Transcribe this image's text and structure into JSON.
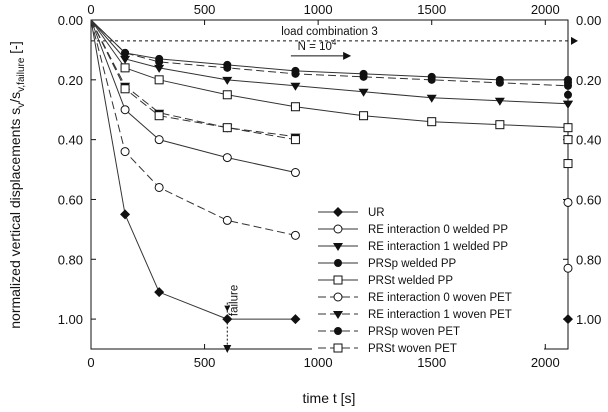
{
  "chart_data": {
    "type": "line",
    "xlabel": "time t [s]",
    "ylabel": "normalized vertical displacements s",
    "ylabel_sub": "v",
    "ylabel_mid": "/s",
    "ylabel_sub2": "v,failure",
    "ylabel_unit": " [-]",
    "xlim": [
      0,
      2100
    ],
    "ylim": [
      0,
      1.1
    ],
    "y_inverted": true,
    "grid": false,
    "x_ticks": [
      0,
      500,
      1000,
      1500,
      2000
    ],
    "x_tick_labels": [
      "0",
      "500",
      "1000",
      "1500",
      "2000"
    ],
    "y_ticks": [
      0,
      0.2,
      0.4,
      0.6,
      0.8,
      1.0
    ],
    "y_tick_labels": [
      "0.00",
      "0.20",
      "0.40",
      "0.60",
      "0.80",
      "1.00"
    ],
    "legend_position": "lower-center",
    "series": [
      {
        "name": "UR",
        "x": [
          0,
          150,
          300,
          600,
          900
        ],
        "y": [
          0,
          0.65,
          0.91,
          1.0,
          1.0
        ],
        "marker": "diamond",
        "dash": "solid",
        "end": 1.0
      },
      {
        "name": "RE interaction 0 welded PP",
        "x": [
          0,
          150,
          300,
          600,
          900
        ],
        "y": [
          0,
          0.3,
          0.4,
          0.46,
          0.51
        ],
        "marker": "circle-open",
        "dash": "solid",
        "end": 0.61
      },
      {
        "name": "RE interaction 1 welded PP",
        "x": [
          0,
          150,
          300,
          600,
          900,
          1200,
          1500,
          1800,
          2100
        ],
        "y": [
          0,
          0.13,
          0.16,
          0.2,
          0.22,
          0.24,
          0.26,
          0.27,
          0.28
        ],
        "marker": "triangle-down",
        "dash": "solid",
        "end": 0.28
      },
      {
        "name": "PRSp welded PP",
        "x": [
          0,
          150,
          300,
          600,
          900,
          1200,
          1500,
          1800,
          2100
        ],
        "y": [
          0,
          0.11,
          0.13,
          0.15,
          0.17,
          0.18,
          0.19,
          0.2,
          0.2
        ],
        "marker": "circle-filled",
        "dash": "solid",
        "end": 0.21
      },
      {
        "name": "PRSt welded PP",
        "x": [
          0,
          150,
          300,
          600,
          900,
          1200,
          1500,
          1800,
          2100
        ],
        "y": [
          0,
          0.16,
          0.2,
          0.25,
          0.29,
          0.32,
          0.34,
          0.35,
          0.36
        ],
        "marker": "square-open",
        "dash": "solid",
        "end": 0.48
      },
      {
        "name": "RE interaction 0 woven PET",
        "x": [
          0,
          150,
          300,
          600,
          900
        ],
        "y": [
          0,
          0.44,
          0.56,
          0.67,
          0.72
        ],
        "marker": "circle-open",
        "dash": "dashed",
        "end": 0.83
      },
      {
        "name": "RE interaction 1 woven PET",
        "x": [
          0,
          150,
          300,
          600,
          900
        ],
        "y": [
          0,
          0.22,
          0.31,
          0.36,
          0.39
        ],
        "marker": "triangle-down",
        "dash": "dashed",
        "end": 0.4
      },
      {
        "name": "PRSp woven PET",
        "x": [
          0,
          150,
          300,
          600,
          900,
          1200,
          1500,
          1800,
          2100
        ],
        "y": [
          0,
          0.11,
          0.14,
          0.16,
          0.18,
          0.19,
          0.2,
          0.21,
          0.22
        ],
        "marker": "circle-filled",
        "dash": "dashed",
        "end": 0.25
      },
      {
        "name": "PRSt woven PET",
        "x": [
          0,
          150,
          300,
          600,
          900
        ],
        "y": [
          0,
          0.23,
          0.32,
          0.36,
          0.4
        ],
        "marker": "square-open",
        "dash": "dashed",
        "end": 0.4
      }
    ],
    "reference_line": {
      "label": "load combination 3",
      "y": 0.07
    },
    "arrow_annotation": {
      "label": "N = 10",
      "superscript": "4",
      "y": 0.12
    },
    "failure_annotation": {
      "label": "failure",
      "x": 600
    }
  }
}
